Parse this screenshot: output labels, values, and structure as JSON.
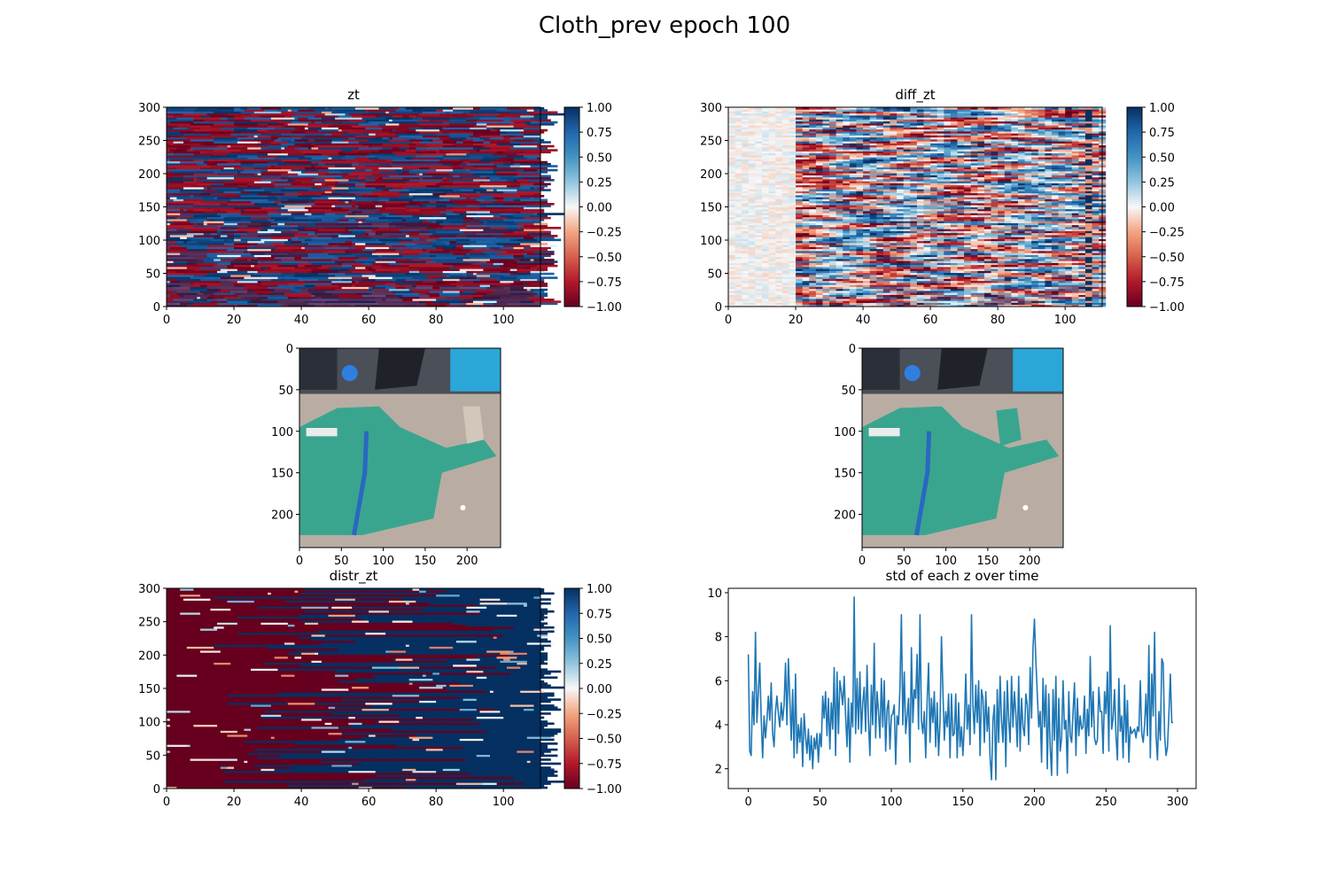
{
  "figure": {
    "suptitle": "Cloth_prev epoch 100"
  },
  "colors": {
    "series_line": "#1f77b4",
    "cmap_negative": "#67001f",
    "cmap_neutral": "#f7f7f7",
    "cmap_positive": "#053061",
    "photo_cloth": "#3aa58f",
    "photo_table": "#b9ada3",
    "photo_background": "#2aa7d8",
    "zipper": "#2a68c0"
  },
  "chart_data": [
    {
      "panel": "zt",
      "type": "heatmap",
      "title": "zt",
      "xlim": [
        0,
        111
      ],
      "ylim": [
        0,
        300
      ],
      "xticks": [
        "0",
        "20",
        "40",
        "60",
        "80",
        "100"
      ],
      "yticks": [
        "0",
        "50",
        "100",
        "150",
        "200",
        "250",
        "300"
      ],
      "colorbar": {
        "range": [
          -1.0,
          1.0
        ],
        "ticks": [
          "1.00",
          "0.75",
          "0.50",
          "0.25",
          "0.00",
          "−0.25",
          "−0.50",
          "−0.75",
          "−1.00"
        ],
        "cmap": "RdBu"
      },
      "pattern": "rows of values near ±1 with scattered flips along time"
    },
    {
      "panel": "diff_zt",
      "type": "heatmap",
      "title": "diff_zt",
      "xlim": [
        0,
        111
      ],
      "ylim": [
        0,
        300
      ],
      "xticks": [
        "0",
        "20",
        "40",
        "60",
        "80",
        "100"
      ],
      "yticks": [
        "0",
        "50",
        "100",
        "150",
        "200",
        "250",
        "300"
      ],
      "colorbar": {
        "range": [
          -1.0,
          1.0
        ],
        "ticks": [
          "1.00",
          "0.75",
          "0.50",
          "0.25",
          "0.00",
          "−0.25",
          "−0.50",
          "−0.75",
          "−1.00"
        ],
        "cmap": "RdBu"
      },
      "pattern": "near 0 for x<20, large smooth oscillations afterwards"
    },
    {
      "panel": "image_left",
      "type": "image",
      "xlim": [
        0,
        240
      ],
      "ylim": [
        240,
        0
      ],
      "xticks": [
        "0",
        "50",
        "100",
        "150",
        "200"
      ],
      "yticks": [
        "0",
        "50",
        "100",
        "150",
        "200"
      ]
    },
    {
      "panel": "image_right",
      "type": "image",
      "xlim": [
        0,
        240
      ],
      "ylim": [
        240,
        0
      ],
      "xticks": [
        "0",
        "50",
        "100",
        "150",
        "200"
      ],
      "yticks": [
        "0",
        "50",
        "100",
        "150",
        "200"
      ]
    },
    {
      "panel": "distr_zt",
      "type": "heatmap",
      "title": "distr_zt",
      "xlim": [
        0,
        111
      ],
      "ylim": [
        0,
        300
      ],
      "xticks": [
        "0",
        "20",
        "40",
        "60",
        "80",
        "100"
      ],
      "yticks": [
        "0",
        "50",
        "100",
        "150",
        "200",
        "250",
        "300"
      ],
      "colorbar": {
        "range": [
          -1.0,
          1.0
        ],
        "ticks": [
          "1.00",
          "0.75",
          "0.50",
          "0.25",
          "0.00",
          "−0.25",
          "−0.50",
          "−0.75",
          "−1.00"
        ],
        "cmap": "RdBu"
      },
      "pattern": "mostly -1 at early time, transitioning to +1 by late time"
    },
    {
      "panel": "std",
      "type": "line",
      "title": "std of each z over time",
      "xlim": [
        -14,
        313
      ],
      "ylim": [
        1.1,
        10.2
      ],
      "xticks": [
        0,
        50,
        100,
        150,
        200,
        250,
        300
      ],
      "yticks": [
        2,
        4,
        6,
        8,
        10
      ],
      "x_start": 0,
      "x_step": 1,
      "series": [
        {
          "values": [
            7.2,
            2.8,
            2.6,
            5.5,
            4.0,
            8.2,
            4.1,
            5.5,
            6.8,
            4.3,
            2.5,
            4.4,
            3.4,
            4.2,
            5.3,
            4.2,
            5.9,
            3.6,
            3.0,
            4.6,
            5.3,
            4.5,
            3.9,
            5.0,
            4.2,
            4.9,
            6.8,
            4.0,
            7.0,
            5.2,
            3.3,
            5.6,
            2.5,
            6.3,
            2.7,
            4.0,
            3.2,
            4.3,
            2.1,
            4.5,
            3.5,
            2.7,
            3.8,
            2.4,
            3.5,
            2.0,
            3.4,
            2.9,
            3.6,
            2.3,
            3.6,
            3.0,
            5.3,
            4.3,
            5.5,
            3.5,
            5.2,
            2.9,
            5.0,
            3.8,
            6.6,
            2.6,
            6.4,
            3.6,
            6.0,
            5.5,
            4.9,
            6.2,
            4.4,
            3.0,
            5.2,
            2.3,
            5.0,
            3.9,
            9.8,
            3.6,
            6.1,
            3.8,
            6.4,
            3.6,
            5.0,
            5.7,
            3.7,
            6.7,
            4.1,
            2.6,
            5.8,
            4.0,
            7.7,
            3.4,
            5.5,
            4.6,
            3.4,
            6.1,
            3.9,
            6.0,
            2.8,
            4.7,
            5.1,
            2.9,
            4.4,
            4.5,
            4.9,
            2.2,
            4.4,
            4.0,
            5.7,
            9.0,
            4.0,
            6.4,
            3.6,
            4.4,
            5.2,
            2.3,
            7.5,
            4.1,
            5.6,
            5.2,
            7.2,
            3.8,
            9.0,
            4.2,
            3.6,
            4.6,
            2.5,
            5.1,
            6.8,
            3.2,
            5.2,
            4.1,
            5.5,
            3.0,
            5.0,
            2.6,
            4.1,
            8.0,
            5.6,
            3.3,
            4.6,
            3.9,
            5.4,
            2.5,
            5.4,
            3.5,
            3.6,
            5.4,
            2.5,
            5.0,
            3.0,
            3.9,
            2.6,
            4.0,
            6.3,
            3.8,
            4.9,
            3.1,
            9.0,
            4.9,
            3.6,
            5.8,
            4.1,
            6.0,
            2.6,
            5.6,
            5.2,
            3.2,
            5.5,
            3.7,
            4.8,
            2.5,
            1.5,
            4.2,
            4.9,
            1.5,
            5.6,
            3.2,
            6.2,
            4.2,
            3.2,
            5.5,
            2.1,
            6.0,
            4.2,
            3.2,
            6.2,
            3.9,
            5.5,
            4.5,
            3.0,
            6.2,
            2.8,
            5.2,
            3.9,
            3.5,
            5.4,
            4.9,
            3.1,
            6.6,
            4.3,
            7.5,
            8.8,
            6.9,
            5.4,
            3.9,
            4.6,
            2.3,
            6.1,
            3.9,
            5.8,
            2.0,
            5.4,
            3.0,
            1.7,
            5.6,
            3.3,
            6.2,
            1.7,
            5.2,
            2.8,
            3.4,
            6.0,
            3.8,
            4.2,
            1.8,
            5.5,
            3.5,
            3.2,
            4.6,
            5.9,
            2.6,
            5.2,
            3.5,
            4.4,
            3.8,
            3.9,
            5.3,
            2.7,
            4.7,
            3.5,
            7.1,
            3.9,
            5.5,
            3.4,
            3.1,
            3.3,
            5.7,
            4.6,
            4.6,
            2.7,
            5.5,
            4.5,
            6.4,
            2.8,
            8.5,
            3.8,
            4.3,
            5.6,
            3.5,
            2.4,
            6.1,
            3.7,
            4.4,
            2.5,
            5.8,
            3.2,
            5.1,
            2.3,
            3.9,
            3.6,
            3.7,
            3.8,
            3.4,
            3.9,
            3.7,
            6.0,
            3.6,
            3.2,
            4.0,
            5.4,
            3.5,
            7.6,
            2.5,
            6.3,
            4.4,
            8.2,
            3.5,
            2.4,
            4.6,
            3.3,
            7.0,
            6.8,
            3.5,
            2.6,
            3.0,
            4.5,
            6.3,
            4.1,
            4.1
          ]
        }
      ]
    }
  ]
}
